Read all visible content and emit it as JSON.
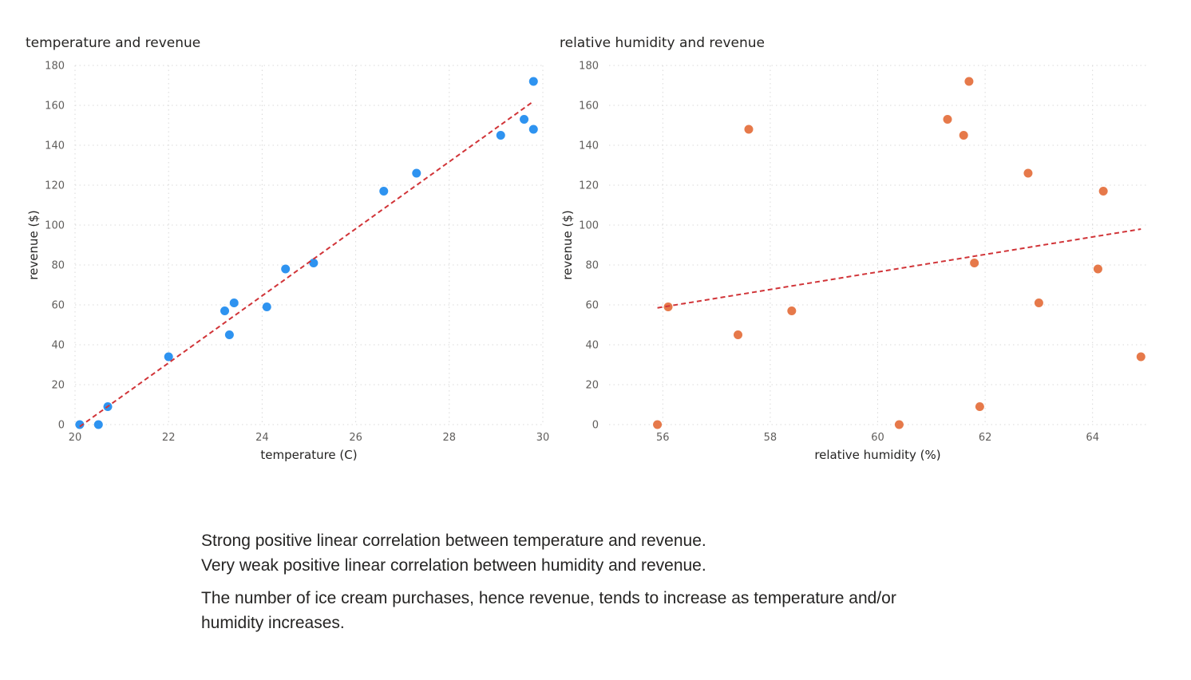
{
  "chart_data": [
    {
      "type": "scatter",
      "title": "temperature and revenue",
      "xlabel": "temperature (C)",
      "ylabel": "revenue ($)",
      "xlim": [
        20,
        30
      ],
      "ylim": [
        0,
        180
      ],
      "xticks": [
        20,
        22,
        24,
        26,
        28,
        30
      ],
      "yticks": [
        0,
        20,
        40,
        60,
        80,
        100,
        120,
        140,
        160,
        180
      ],
      "grid": true,
      "point_color": "#2E93F0",
      "trend_color": "#D13438",
      "points": [
        {
          "x": 20.1,
          "y": 0
        },
        {
          "x": 20.5,
          "y": 0
        },
        {
          "x": 20.7,
          "y": 9
        },
        {
          "x": 22.0,
          "y": 34
        },
        {
          "x": 23.2,
          "y": 57
        },
        {
          "x": 23.3,
          "y": 45
        },
        {
          "x": 23.4,
          "y": 61
        },
        {
          "x": 24.1,
          "y": 59
        },
        {
          "x": 24.5,
          "y": 78
        },
        {
          "x": 25.1,
          "y": 81
        },
        {
          "x": 26.6,
          "y": 117
        },
        {
          "x": 27.3,
          "y": 126
        },
        {
          "x": 29.1,
          "y": 145
        },
        {
          "x": 29.6,
          "y": 153
        },
        {
          "x": 29.8,
          "y": 172
        },
        {
          "x": 29.8,
          "y": 148
        }
      ],
      "trendline": [
        {
          "x": 20.1,
          "y": -1
        },
        {
          "x": 29.8,
          "y": 162
        }
      ]
    },
    {
      "type": "scatter",
      "title": "relative humidity and revenue",
      "xlabel": "relative humidity (%)",
      "ylabel": "revenue ($)",
      "xlim": [
        55,
        65
      ],
      "ylim": [
        0,
        180
      ],
      "xticks": [
        56,
        58,
        60,
        62,
        64
      ],
      "yticks": [
        0,
        20,
        40,
        60,
        80,
        100,
        120,
        140,
        160,
        180
      ],
      "grid": true,
      "point_color": "#E6794A",
      "trend_color": "#D13438",
      "points": [
        {
          "x": 55.9,
          "y": 0
        },
        {
          "x": 56.1,
          "y": 59
        },
        {
          "x": 57.4,
          "y": 45
        },
        {
          "x": 57.6,
          "y": 148
        },
        {
          "x": 58.4,
          "y": 57
        },
        {
          "x": 60.4,
          "y": 0
        },
        {
          "x": 61.3,
          "y": 153
        },
        {
          "x": 61.6,
          "y": 145
        },
        {
          "x": 61.7,
          "y": 172
        },
        {
          "x": 61.8,
          "y": 81
        },
        {
          "x": 61.9,
          "y": 9
        },
        {
          "x": 62.8,
          "y": 126
        },
        {
          "x": 63.0,
          "y": 61
        },
        {
          "x": 64.1,
          "y": 78
        },
        {
          "x": 64.2,
          "y": 117
        },
        {
          "x": 64.9,
          "y": 34
        }
      ],
      "trendline": [
        {
          "x": 55.9,
          "y": 58.5
        },
        {
          "x": 64.9,
          "y": 98
        }
      ]
    }
  ],
  "notes": {
    "line1": "Strong positive linear correlation between temperature and revenue.",
    "line2": "Very weak positive linear correlation between humidity and revenue.",
    "line3": "The number of ice cream purchases, hence revenue, tends to increase as temperature and/or humidity increases."
  }
}
